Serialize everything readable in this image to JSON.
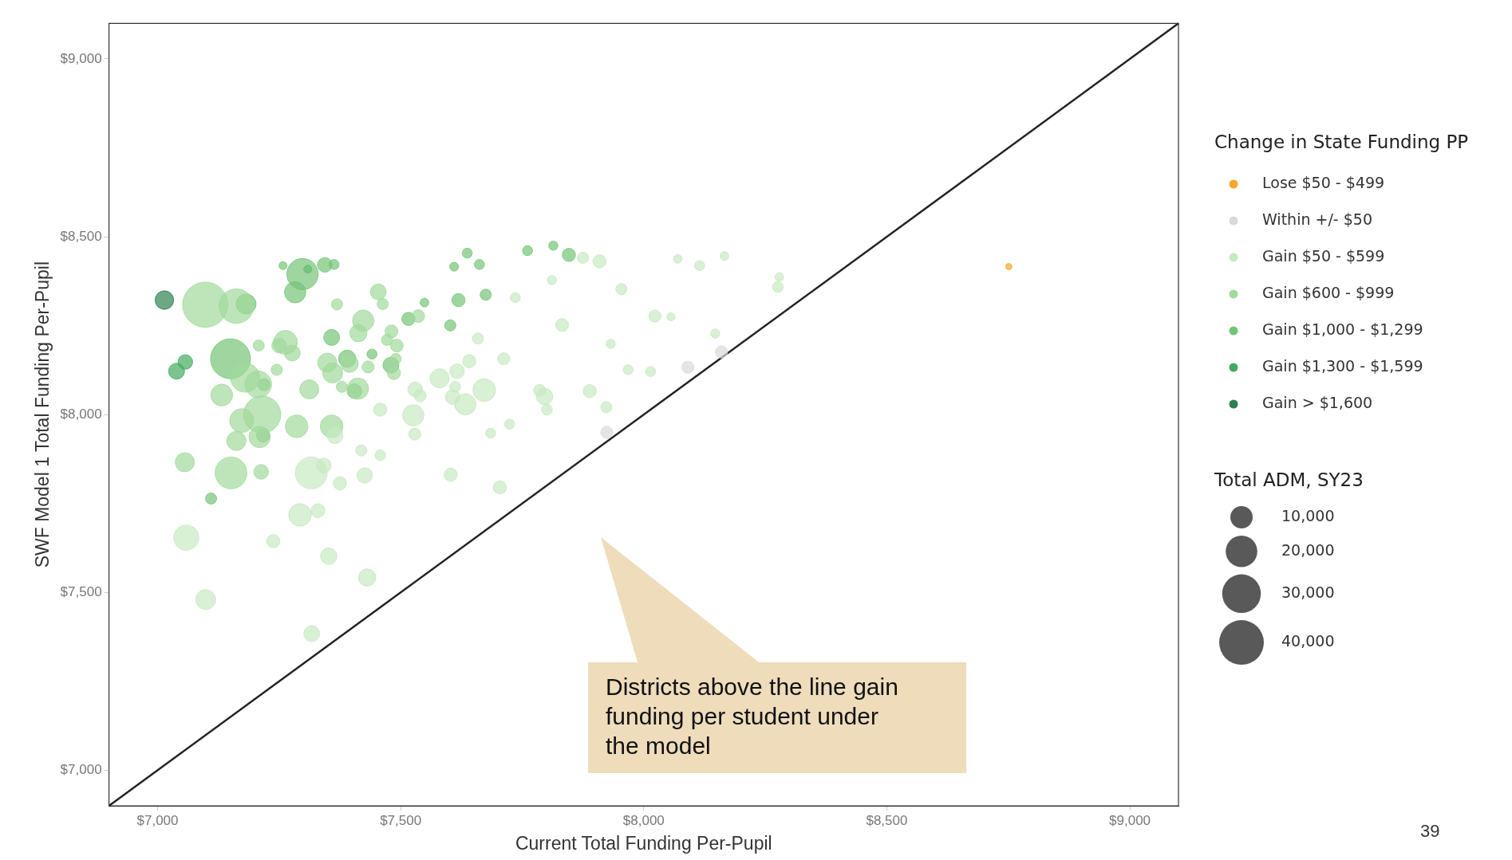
{
  "chart_data": {
    "type": "bubble",
    "xlabel": "Current Total Funding Per-Pupil",
    "ylabel": "SWF Model 1 Total Funding Per-Pupil",
    "legend_title": "Change in State Funding PP",
    "legend": "right",
    "grid": false,
    "xlim": [
      6900,
      9100
    ],
    "ylim": [
      6900,
      9100
    ],
    "xticks": [
      {
        "value": 7000,
        "label": "$7,000"
      },
      {
        "value": 7500,
        "label": "$7,500"
      },
      {
        "value": 8000,
        "label": "$8,000"
      },
      {
        "value": 8500,
        "label": "$8,500"
      },
      {
        "value": 9000,
        "label": "$9,000"
      }
    ],
    "yticks": [
      {
        "value": 7000,
        "label": "$7,000"
      },
      {
        "value": 7500,
        "label": "$7,500"
      },
      {
        "value": 8000,
        "label": "$8,000"
      },
      {
        "value": 8500,
        "label": "$8,500"
      },
      {
        "value": 9000,
        "label": "$9,000"
      }
    ],
    "size_legend": [
      {
        "value": 10000,
        "label": "10,000"
      },
      {
        "value": 20000,
        "label": "20,000"
      },
      {
        "value": 30000,
        "label": "30,000"
      },
      {
        "value": 40000,
        "label": "40,000"
      }
    ],
    "annotations": [
      "Districts above the line gain funding per student under the model",
      "Total ADM, SY23",
      "39"
    ],
    "series": [
      {
        "name": "Lose $50 - $499",
        "color": "#f7a82b",
        "x": [
          8751
        ],
        "values": [
          8416
        ],
        "sizes": [
          800
        ]
      },
      {
        "name": "Within +/- $50",
        "color": "#d9d9d9",
        "x": [
          8160,
          8091,
          7924
        ],
        "values": [
          8176,
          8133,
          7950
        ],
        "sizes": [
          2900,
          2900,
          2900
        ]
      },
      {
        "name": "Gain $50 - $599",
        "color": "#c7e9c0",
        "x": [
          7659,
          7365,
          7316,
          7342,
          7375,
          7426,
          7419,
          7458,
          7458,
          7526,
          7529,
          7530,
          7540,
          7580,
          7616,
          7641,
          7612,
          7607,
          7633,
          7672,
          7603,
          7685,
          7704,
          7712,
          7293,
          7330,
          7059,
          7238,
          7352,
          7431,
          7099,
          7317,
          7875,
          7909,
          8070,
          8115,
          8166,
          8279,
          8276,
          7811,
          7736,
          7954,
          8023,
          8056,
          7832,
          7932,
          8147,
          7968,
          8014,
          7889,
          7923,
          7796,
          7786,
          7801,
          7724
        ],
        "values": [
          8214,
          7941,
          7836,
          7857,
          7807,
          7829,
          7899,
          7886,
          8014,
          7998,
          7945,
          8071,
          8053,
          8102,
          8122,
          8150,
          8078,
          8049,
          8029,
          8069,
          7831,
          7948,
          7795,
          8157,
          7718,
          7730,
          7654,
          7644,
          7602,
          7542,
          7480,
          7384,
          8441,
          8431,
          8438,
          8419,
          8446,
          8387,
          8359,
          8378,
          8329,
          8353,
          8277,
          8275,
          8252,
          8199,
          8228,
          8126,
          8121,
          8066,
          8021,
          8051,
          8068,
          8014,
          7973
        ],
        "sizes": [
          2500,
          5100,
          20400,
          4300,
          3500,
          4800,
          2500,
          2300,
          3500,
          9100,
          2900,
          4300,
          2900,
          7300,
          4300,
          3500,
          2300,
          4300,
          9100,
          10300,
          3500,
          2000,
          3500,
          2900,
          10300,
          3900,
          12800,
          3500,
          5500,
          6000,
          8000,
          5100,
          2500,
          3500,
          1500,
          2000,
          1500,
          1500,
          2300,
          1700,
          2000,
          2500,
          2900,
          1300,
          3300,
          1700,
          1700,
          2000,
          2000,
          3500,
          2500,
          5500,
          2900,
          2300,
          2000
        ]
      },
      {
        "name": "Gain $600 - $999",
        "color": "#a1d99b",
        "x": [
          7098,
          7162,
          7454,
          7463,
          7369,
          7423,
          7413,
          7536,
          7481,
          7472,
          7492,
          7433,
          7490,
          7486,
          7263,
          7250,
          7277,
          7208,
          7180,
          7207,
          7245,
          7132,
          7312,
          7349,
          7360,
          7395,
          7379,
          7412,
          7215,
          7173,
          7210,
          7162,
          7286,
          7358,
          7056,
          7151,
          7213
        ],
        "values": [
          8309,
          8305,
          8345,
          8311,
          8310,
          8264,
          8229,
          8277,
          8234,
          8210,
          8194,
          8134,
          8157,
          8117,
          8203,
          8194,
          8173,
          8194,
          8104,
          8085,
          8126,
          8055,
          8071,
          8146,
          8117,
          8143,
          8078,
          8073,
          8000,
          7983,
          7937,
          7926,
          7967,
          7967,
          7866,
          7836,
          7839
        ],
        "sizes": [
          41000,
          23900,
          5100,
          2500,
          2500,
          9100,
          6000,
          3300,
          3300,
          2500,
          3300,
          2900,
          2300,
          3500,
          11500,
          4300,
          5100,
          2500,
          17100,
          14200,
          2500,
          9500,
          7300,
          7300,
          8000,
          6000,
          2500,
          9100,
          27800,
          11500,
          9100,
          7300,
          10300,
          10300,
          7300,
          20400,
          4300
        ]
      },
      {
        "name": "Gain $1,000 - $1,299",
        "color": "#74c476",
        "x": [
          7182,
          7298,
          7283,
          7258,
          7344,
          7363,
          7549,
          7516,
          7441,
          7480,
          7619,
          7610,
          7637,
          7662,
          7675,
          7602,
          7358,
          7150,
          7219,
          7390,
          7405,
          7217,
          7110,
          7761,
          7814,
          7846
        ],
        "values": [
          8311,
          8395,
          8344,
          8419,
          8421,
          8422,
          8315,
          8269,
          8170,
          8139,
          8322,
          8416,
          8454,
          8422,
          8337,
          8251,
          8217,
          8157,
          8084,
          8157,
          8066,
          7941,
          7764,
          8461,
          8475,
          8449
        ],
        "sizes": [
          8000,
          19700,
          9100,
          1300,
          4300,
          2000,
          1500,
          3500,
          2000,
          5100,
          3500,
          1600,
          2000,
          2000,
          2500,
          2500,
          5100,
          31900,
          2900,
          6000,
          4300,
          3500,
          2500,
          2000,
          1700,
          3500
        ]
      },
      {
        "name": "Gain $1,300 - $1,599",
        "color": "#41ab5d",
        "x": [
          7309,
          7057,
          7039
        ],
        "values": [
          8409,
          8148,
          8122
        ],
        "sizes": [
          1300,
          4300,
          5100
        ]
      },
      {
        "name": "Gain > $1,600",
        "color": "#2d7f50",
        "x": [
          7014
        ],
        "values": [
          8322
        ],
        "sizes": [
          6900
        ]
      },
      {
        "type": "line",
        "color": "#222222",
        "x": [
          6900,
          9100
        ],
        "values": [
          6900,
          9100
        ],
        "line_style": "solid",
        "marker": "none"
      }
    ]
  }
}
